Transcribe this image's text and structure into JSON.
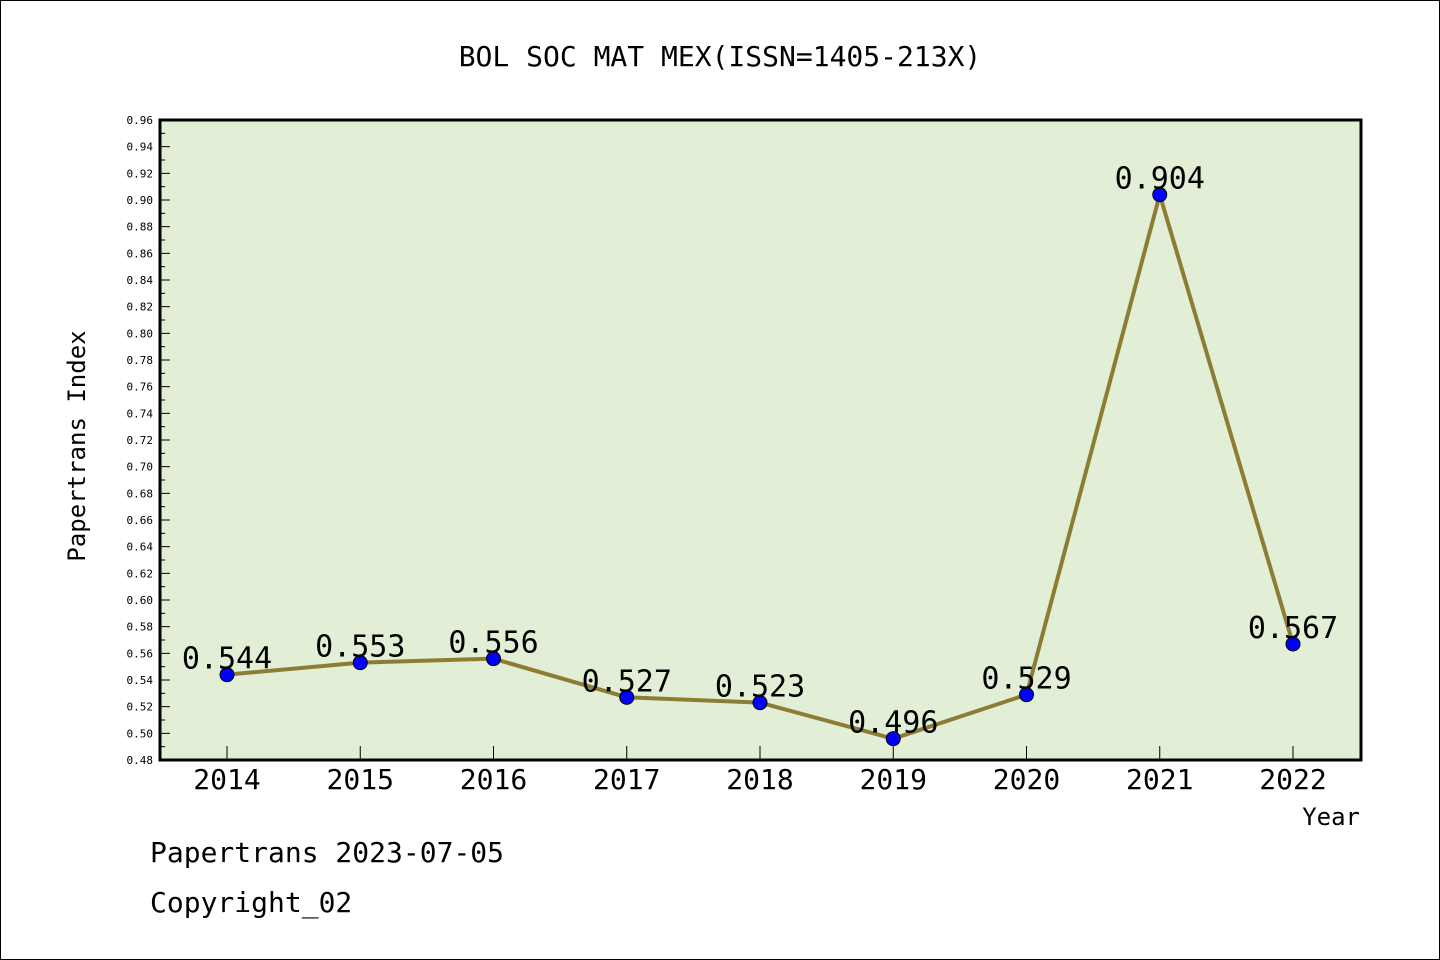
{
  "chart_data": {
    "type": "line",
    "title": "BOL SOC MAT MEX(ISSN=1405-213X)",
    "xlabel": "Year",
    "ylabel": "Papertrans Index",
    "categories": [
      "2014",
      "2015",
      "2016",
      "2017",
      "2018",
      "2019",
      "2020",
      "2021",
      "2022"
    ],
    "series": [
      {
        "values": [
          0.544,
          0.553,
          0.556,
          0.527,
          0.523,
          0.496,
          0.529,
          0.904,
          0.567
        ]
      }
    ],
    "data_labels": [
      "0.544",
      "0.553",
      "0.556",
      "0.527",
      "0.523",
      "0.496",
      "0.529",
      "0.904",
      "0.567"
    ],
    "ylim": [
      0.48,
      0.96
    ],
    "yticks": [
      "0.48",
      "0.50",
      "0.52",
      "0.54",
      "0.56",
      "0.58",
      "0.60",
      "0.62",
      "0.64",
      "0.66",
      "0.68",
      "0.70",
      "0.72",
      "0.74",
      "0.76",
      "0.78",
      "0.80",
      "0.82",
      "0.84",
      "0.86",
      "0.88",
      "0.90",
      "0.92",
      "0.94",
      "0.96"
    ],
    "grid": false,
    "colors": {
      "plot_background": "#e2efd6",
      "line": "#8c7d35",
      "marker": "#0000ff"
    }
  },
  "footer": {
    "date_line": "Papertrans 2023-07-05",
    "copyright": "Copyright_02"
  }
}
